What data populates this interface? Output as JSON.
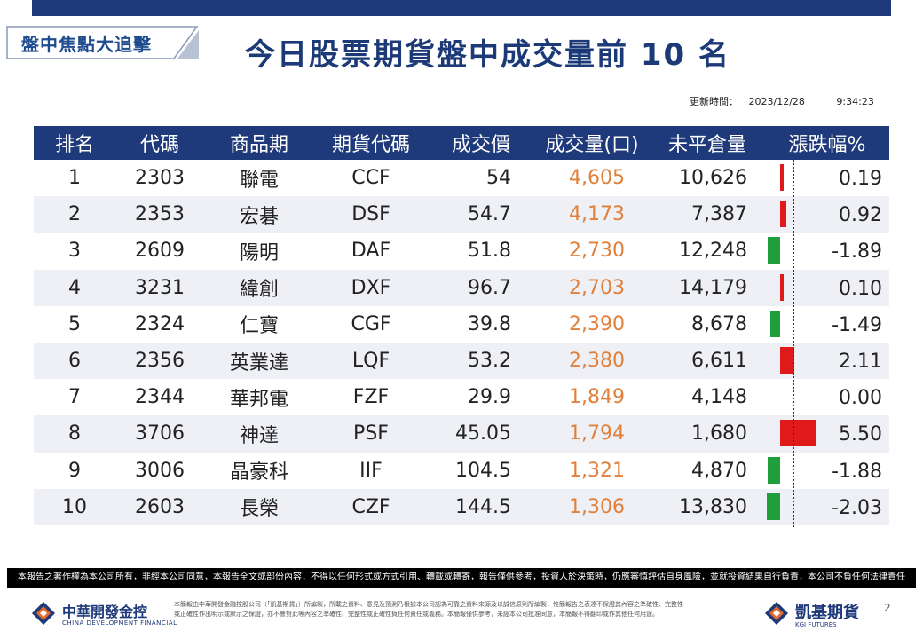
{
  "tag": "盤中焦點大追擊",
  "title": "今日股票期貨盤中成交量前 10 名",
  "update": {
    "label": "更新時間：",
    "date": "2023/12/28",
    "time": "9:34:23"
  },
  "columns": [
    "排名",
    "代碼",
    "商品期",
    "期貨代碼",
    "成交價",
    "成交量(口)",
    "未平倉量",
    "漲跌幅%"
  ],
  "rows": [
    {
      "rank": "1",
      "code": "2303",
      "name": "聯電",
      "fut": "CCF",
      "price": "54",
      "volume": "4,605",
      "oi": "10,626",
      "change": "0.19",
      "change_value": 0.19
    },
    {
      "rank": "2",
      "code": "2353",
      "name": "宏碁",
      "fut": "DSF",
      "price": "54.7",
      "volume": "4,173",
      "oi": "7,387",
      "change": "0.92",
      "change_value": 0.92
    },
    {
      "rank": "3",
      "code": "2609",
      "name": "陽明",
      "fut": "DAF",
      "price": "51.8",
      "volume": "2,730",
      "oi": "12,248",
      "change": "-1.89",
      "change_value": -1.89
    },
    {
      "rank": "4",
      "code": "3231",
      "name": "緯創",
      "fut": "DXF",
      "price": "96.7",
      "volume": "2,703",
      "oi": "14,179",
      "change": "0.10",
      "change_value": 0.1
    },
    {
      "rank": "5",
      "code": "2324",
      "name": "仁寶",
      "fut": "CGF",
      "price": "39.8",
      "volume": "2,390",
      "oi": "8,678",
      "change": "-1.49",
      "change_value": -1.49
    },
    {
      "rank": "6",
      "code": "2356",
      "name": "英業達",
      "fut": "LQF",
      "price": "53.2",
      "volume": "2,380",
      "oi": "6,611",
      "change": "2.11",
      "change_value": 2.11
    },
    {
      "rank": "7",
      "code": "2344",
      "name": "華邦電",
      "fut": "FZF",
      "price": "29.9",
      "volume": "1,849",
      "oi": "4,148",
      "change": "0.00",
      "change_value": 0.0
    },
    {
      "rank": "8",
      "code": "3706",
      "name": "神達",
      "fut": "PSF",
      "price": "45.05",
      "volume": "1,794",
      "oi": "1,680",
      "change": "5.50",
      "change_value": 5.5
    },
    {
      "rank": "9",
      "code": "3006",
      "name": "晶豪科",
      "fut": "IIF",
      "price": "104.5",
      "volume": "1,321",
      "oi": "4,870",
      "change": "-1.88",
      "change_value": -1.88
    },
    {
      "rank": "10",
      "code": "2603",
      "name": "長榮",
      "fut": "CZF",
      "price": "144.5",
      "volume": "1,306",
      "oi": "13,830",
      "change": "-2.03",
      "change_value": -2.03
    }
  ],
  "colors": {
    "header": "#1f3a7a",
    "volume": "#e0803a",
    "up": "#e0191b",
    "down": "#1f9f3b"
  },
  "disclaimer": "本報告之著作權為本公司所有，非經本公司同意，本報告全文或部份內容，不得以任何形式或方式引用、轉載或轉寄，報告僅供參考，投資人於決策時，仍應審慎評估自身風險，並就投資結果自行負責，本公司不負任何法律責任",
  "footer": {
    "left_name": "中華開發金控",
    "left_en": "CHINA DEVELOPMENT FINANCIAL",
    "fine_print": "本簡報由中華開發金融控股公司（「凱基期貨」）所編製，所載之資料、意見及預測乃根據本公司認為可靠之資料來源及以誠信原則所編製，惟簡報告之表達不保證其內容之準確性、完整性或正確性作出明示或默示之保證，亦不會對此等內容之準確性、完整性或正確性負任何責任或義務。本簡報僅供參考，未經本公司批准同意，本簡報不得翻印或作其他任何用途。",
    "right_name": "凱基期貨",
    "right_en": "KGI FUTURES",
    "page": "2"
  }
}
